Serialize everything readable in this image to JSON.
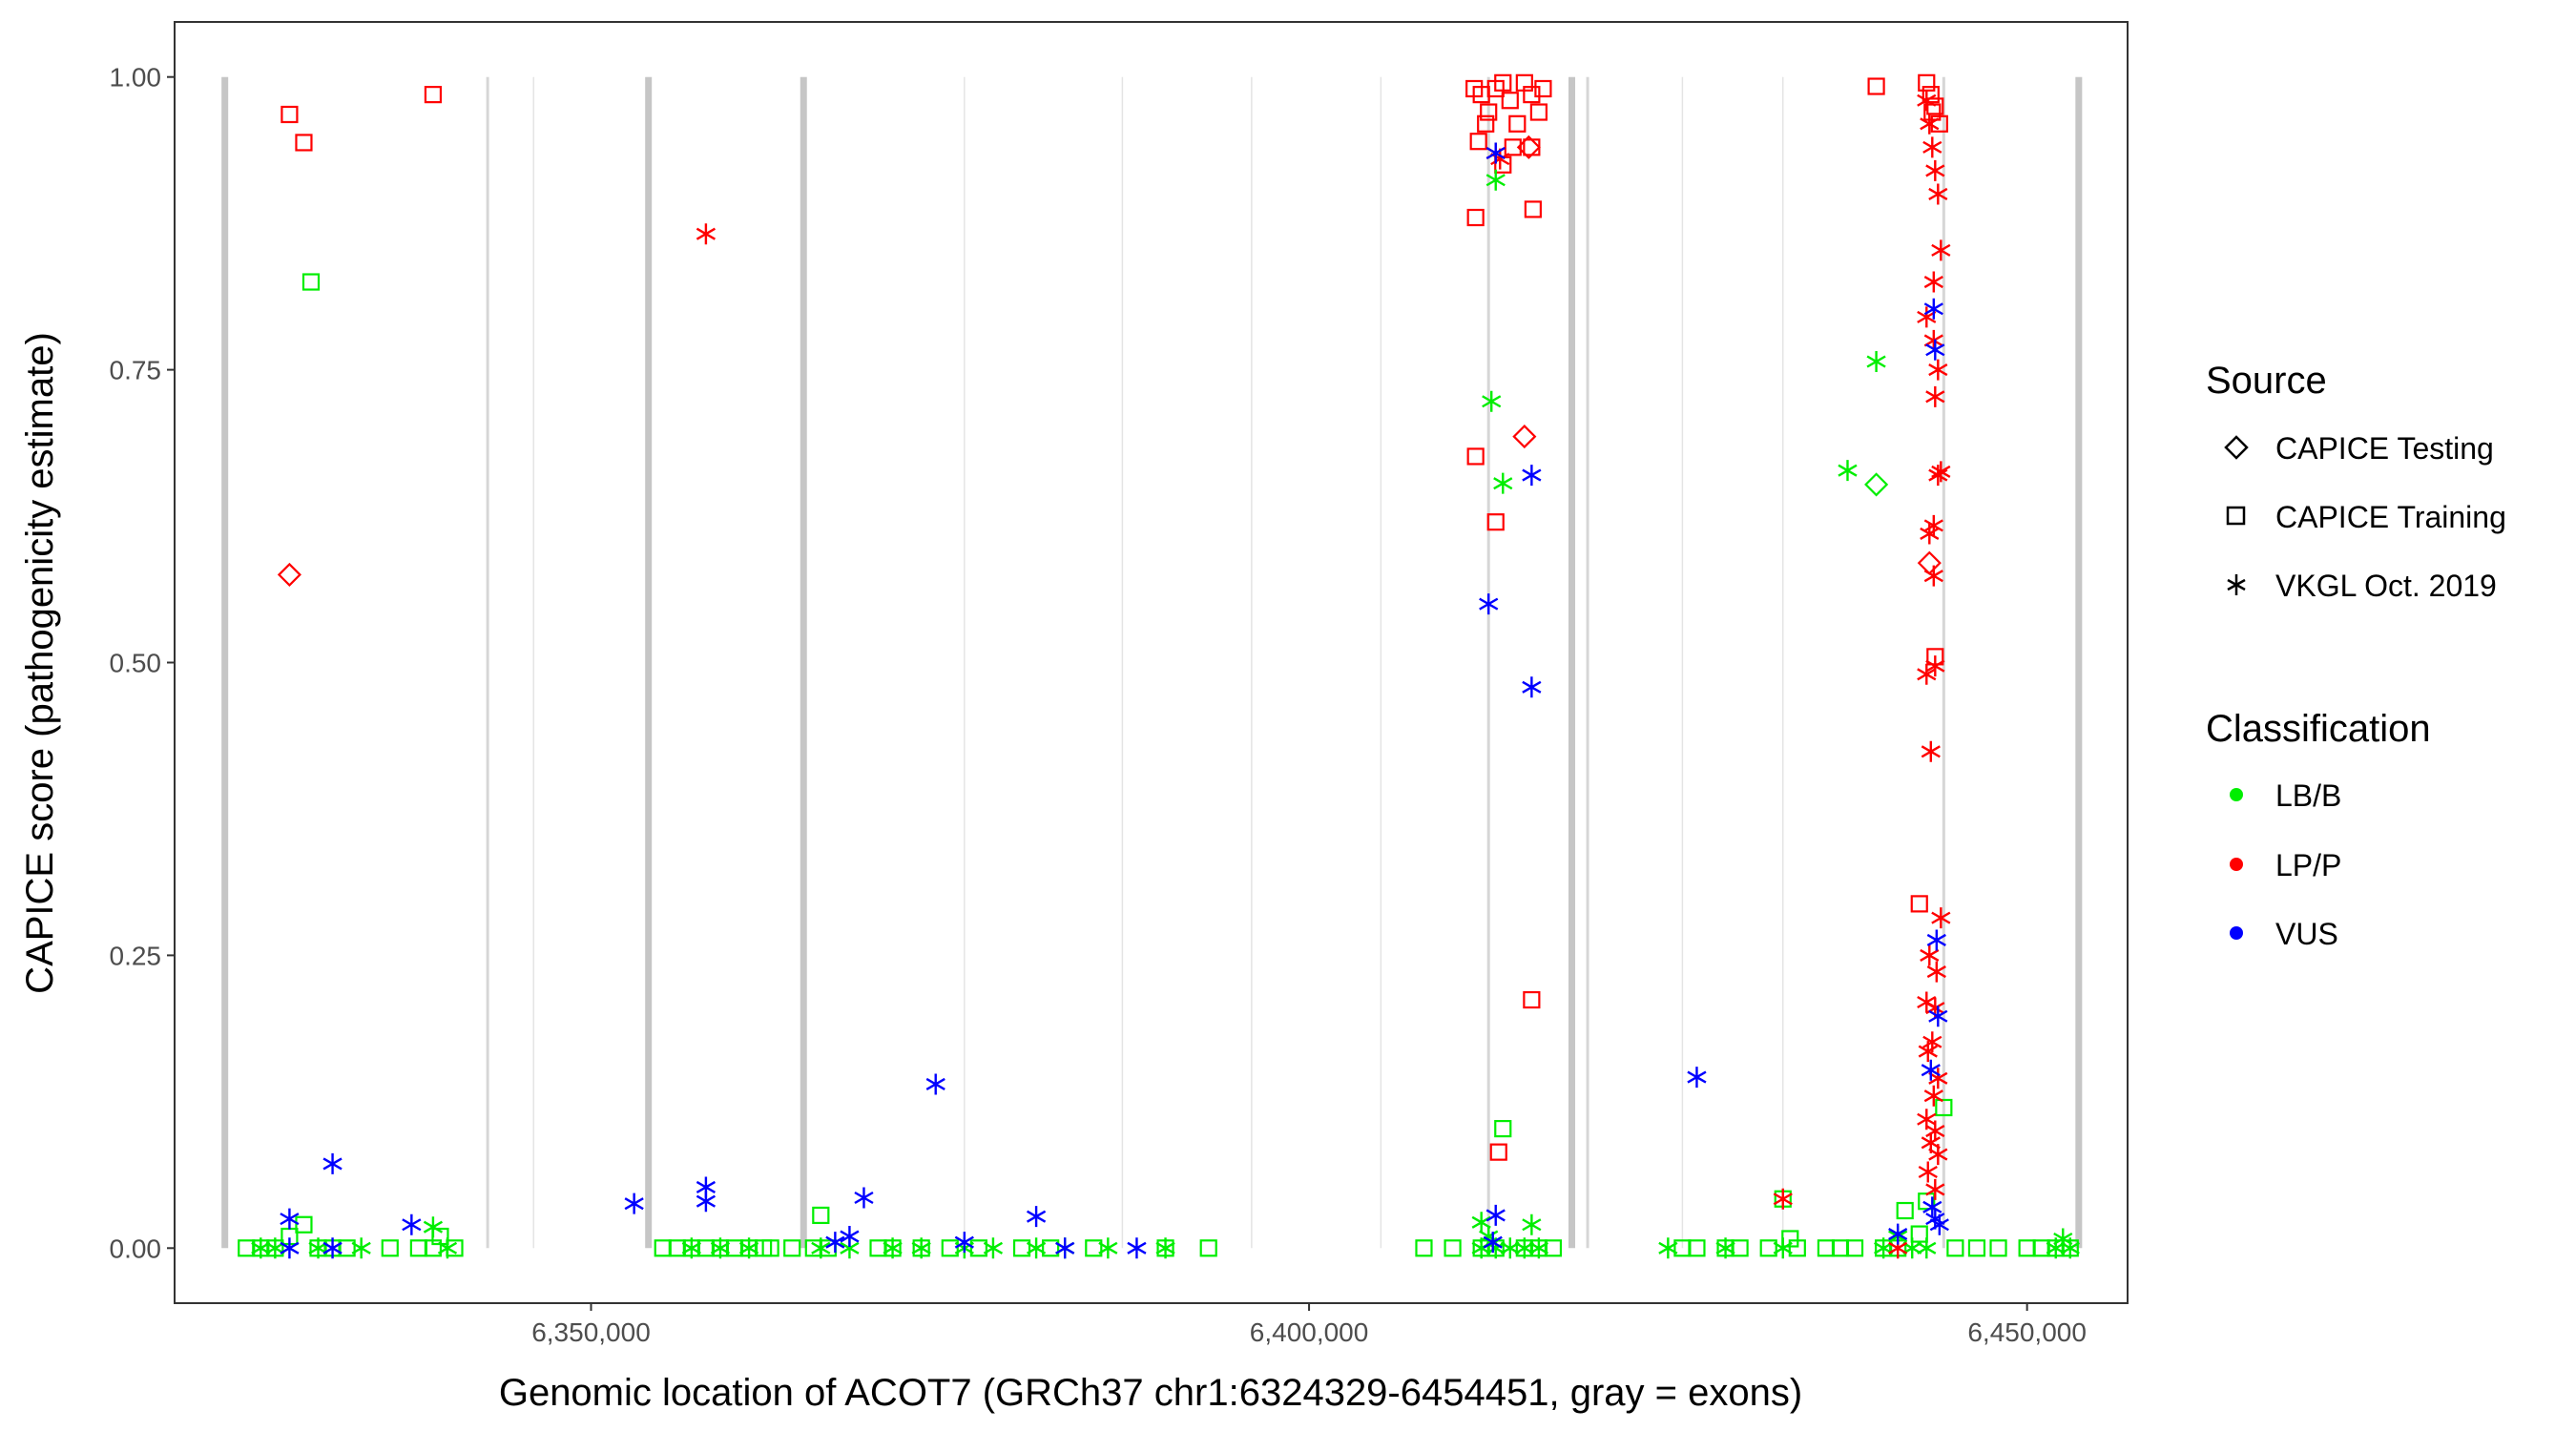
{
  "chart_data": {
    "type": "scatter",
    "xlabel": "Genomic location of ACOT7 (GRCh37 chr1:6324329-6454451, gray = exons)",
    "ylabel": "CAPICE score (pathogenicity estimate)",
    "xlim": [
      6321000,
      6457000
    ],
    "ylim": [
      -0.047,
      1.047
    ],
    "x_ticks": [
      6350000,
      6400000,
      6450000
    ],
    "x_tick_labels": [
      "6,350,000",
      "6,400,000",
      "6,450,000"
    ],
    "y_ticks": [
      0,
      0.25,
      0.5,
      0.75,
      1.0
    ],
    "y_tick_labels": [
      "0.00",
      "0.25",
      "0.50",
      "0.75",
      "1.00"
    ],
    "exons": [
      6324500,
      6342800,
      6354000,
      6364800,
      6412500,
      6418300,
      6419400,
      6444200,
      6453600
    ],
    "thick_exons": [
      6324500,
      6354000,
      6364800,
      6418300,
      6453600
    ],
    "legend": {
      "source_title": "Source",
      "source_items": [
        {
          "shape": "diamond",
          "label": "CAPICE Testing"
        },
        {
          "shape": "square",
          "label": "CAPICE Training"
        },
        {
          "shape": "asterisk",
          "label": "VKGL Oct. 2019"
        }
      ],
      "class_title": "Classification",
      "class_items": [
        {
          "key": "LB/B",
          "label": "LB/B",
          "color": "#00ee00"
        },
        {
          "key": "LP/P",
          "label": "LP/P",
          "color": "#ff0000"
        },
        {
          "key": "VUS",
          "label": "VUS",
          "color": "#0000ff"
        }
      ]
    },
    "series": [
      {
        "name": "CAPICE Training LB/B",
        "shape": "square",
        "class": "LB/B",
        "points": [
          [
            6326000,
            0
          ],
          [
            6327000,
            0
          ],
          [
            6328000,
            0
          ],
          [
            6329000,
            0.01
          ],
          [
            6330000,
            0.02
          ],
          [
            6331000,
            0
          ],
          [
            6332000,
            0
          ],
          [
            6333000,
            0
          ],
          [
            6330500,
            0.825
          ],
          [
            6336000,
            0
          ],
          [
            6338000,
            0
          ],
          [
            6339000,
            0
          ],
          [
            6339500,
            0.01
          ],
          [
            6340500,
            0
          ],
          [
            6355000,
            0
          ],
          [
            6356000,
            0
          ],
          [
            6357000,
            0
          ],
          [
            6358000,
            0
          ],
          [
            6359000,
            0
          ],
          [
            6360000,
            0
          ],
          [
            6361000,
            0
          ],
          [
            6362000,
            0
          ],
          [
            6362500,
            0
          ],
          [
            6364000,
            0
          ],
          [
            6365500,
            0
          ],
          [
            6366500,
            0
          ],
          [
            6366000,
            0.028
          ],
          [
            6370000,
            0
          ],
          [
            6371000,
            0
          ],
          [
            6373000,
            0
          ],
          [
            6375000,
            0
          ],
          [
            6377000,
            0
          ],
          [
            6380000,
            0
          ],
          [
            6382000,
            0
          ],
          [
            6385000,
            0
          ],
          [
            6390000,
            0
          ],
          [
            6393000,
            0
          ],
          [
            6408000,
            0
          ],
          [
            6410000,
            0
          ],
          [
            6412000,
            0
          ],
          [
            6413000,
            0
          ],
          [
            6415000,
            0
          ],
          [
            6416000,
            0
          ],
          [
            6417000,
            0
          ],
          [
            6413500,
            0.102
          ],
          [
            6426000,
            0
          ],
          [
            6427000,
            0
          ],
          [
            6429000,
            0
          ],
          [
            6430000,
            0
          ],
          [
            6432000,
            0
          ],
          [
            6433000,
            0.042
          ],
          [
            6433500,
            0.008
          ],
          [
            6434000,
            0
          ],
          [
            6436000,
            0
          ],
          [
            6437000,
            0
          ],
          [
            6438000,
            0
          ],
          [
            6440000,
            0
          ],
          [
            6441000,
            0
          ],
          [
            6441500,
            0.032
          ],
          [
            6442500,
            0.012
          ],
          [
            6443000,
            0.04
          ],
          [
            6444200,
            0.12
          ],
          [
            6445000,
            0
          ],
          [
            6446500,
            0
          ],
          [
            6448000,
            0
          ],
          [
            6450000,
            0
          ],
          [
            6451000,
            0
          ],
          [
            6452000,
            0
          ],
          [
            6453000,
            0
          ]
        ]
      },
      {
        "name": "CAPICE Training LP/P",
        "shape": "square",
        "class": "LP/P",
        "points": [
          [
            6329000,
            0.968
          ],
          [
            6330000,
            0.944
          ],
          [
            6339000,
            0.985
          ],
          [
            6411500,
            0.99
          ],
          [
            6412000,
            0.985
          ],
          [
            6412500,
            0.97
          ],
          [
            6413000,
            0.99
          ],
          [
            6413500,
            0.995
          ],
          [
            6414000,
            0.98
          ],
          [
            6414500,
            0.96
          ],
          [
            6415000,
            0.995
          ],
          [
            6415500,
            0.985
          ],
          [
            6416000,
            0.97
          ],
          [
            6416300,
            0.99
          ],
          [
            6411800,
            0.945
          ],
          [
            6412300,
            0.96
          ],
          [
            6414200,
            0.94
          ],
          [
            6413500,
            0.925
          ],
          [
            6415500,
            0.94
          ],
          [
            6411600,
            0.88
          ],
          [
            6415600,
            0.887
          ],
          [
            6411600,
            0.676
          ],
          [
            6413000,
            0.62
          ],
          [
            6415500,
            0.212
          ],
          [
            6413200,
            0.082
          ],
          [
            6439500,
            0.992
          ],
          [
            6443000,
            0.995
          ],
          [
            6443300,
            0.985
          ],
          [
            6443600,
            0.975
          ],
          [
            6443900,
            0.96
          ],
          [
            6443400,
            0.97
          ],
          [
            6442500,
            0.294
          ],
          [
            6443600,
            0.505
          ]
        ]
      },
      {
        "name": "CAPICE Testing LP/P",
        "shape": "diamond",
        "class": "LP/P",
        "points": [
          [
            6329000,
            0.575
          ],
          [
            6415000,
            0.693
          ],
          [
            6415300,
            0.94
          ],
          [
            6443200,
            0.585
          ]
        ]
      },
      {
        "name": "CAPICE Testing LB/B",
        "shape": "diamond",
        "class": "LB/B",
        "points": [
          [
            6439500,
            0.652
          ]
        ]
      },
      {
        "name": "VKGL LB/B",
        "shape": "asterisk",
        "class": "LB/B",
        "points": [
          [
            6327000,
            0
          ],
          [
            6328000,
            0
          ],
          [
            6331000,
            0
          ],
          [
            6334000,
            0
          ],
          [
            6339000,
            0.018
          ],
          [
            6340000,
            0
          ],
          [
            6357000,
            0
          ],
          [
            6359000,
            0
          ],
          [
            6361000,
            0
          ],
          [
            6366000,
            0
          ],
          [
            6368000,
            0
          ],
          [
            6371000,
            0
          ],
          [
            6373000,
            0
          ],
          [
            6376000,
            0
          ],
          [
            6378000,
            0
          ],
          [
            6381000,
            0
          ],
          [
            6383000,
            0
          ],
          [
            6386000,
            0
          ],
          [
            6390000,
            0
          ],
          [
            6412000,
            0
          ],
          [
            6413000,
            0
          ],
          [
            6414000,
            0
          ],
          [
            6415000,
            0
          ],
          [
            6416000,
            0
          ],
          [
            6412500,
            0.01
          ],
          [
            6412000,
            0.022
          ],
          [
            6415500,
            0.02
          ],
          [
            6413000,
            0.912
          ],
          [
            6412700,
            0.723
          ],
          [
            6413500,
            0.653
          ],
          [
            6425000,
            0
          ],
          [
            6429000,
            0
          ],
          [
            6433000,
            0
          ],
          [
            6437500,
            0.664
          ],
          [
            6439500,
            0.757
          ],
          [
            6440000,
            0
          ],
          [
            6441000,
            0.01
          ],
          [
            6442000,
            0
          ],
          [
            6443000,
            0
          ],
          [
            6452000,
            0
          ],
          [
            6452500,
            0.008
          ],
          [
            6453000,
            0
          ]
        ]
      },
      {
        "name": "VKGL LP/P",
        "shape": "asterisk",
        "class": "LP/P",
        "points": [
          [
            6358000,
            0.866
          ],
          [
            6413000,
            0.935
          ],
          [
            6413300,
            0.93
          ],
          [
            6433000,
            0.042
          ],
          [
            6441000,
            0
          ],
          [
            6443000,
            0.98
          ],
          [
            6443200,
            0.96
          ],
          [
            6443400,
            0.94
          ],
          [
            6443600,
            0.92
          ],
          [
            6443800,
            0.9
          ],
          [
            6444000,
            0.852
          ],
          [
            6443500,
            0.825
          ],
          [
            6443000,
            0.795
          ],
          [
            6443500,
            0.775
          ],
          [
            6443800,
            0.75
          ],
          [
            6443600,
            0.727
          ],
          [
            6444000,
            0.663
          ],
          [
            6443800,
            0.66
          ],
          [
            6443500,
            0.617
          ],
          [
            6443200,
            0.61
          ],
          [
            6443500,
            0.574
          ],
          [
            6443000,
            0.49
          ],
          [
            6443600,
            0.497
          ],
          [
            6443300,
            0.424
          ],
          [
            6444000,
            0.282
          ],
          [
            6443200,
            0.25
          ],
          [
            6443700,
            0.236
          ],
          [
            6443000,
            0.21
          ],
          [
            6443600,
            0.205
          ],
          [
            6443400,
            0.176
          ],
          [
            6443100,
            0.168
          ],
          [
            6443800,
            0.145
          ],
          [
            6443500,
            0.13
          ],
          [
            6443000,
            0.11
          ],
          [
            6443600,
            0.1
          ],
          [
            6443300,
            0.09
          ],
          [
            6443800,
            0.08
          ],
          [
            6443100,
            0.065
          ],
          [
            6443600,
            0.05
          ]
        ]
      },
      {
        "name": "VKGL VUS",
        "shape": "asterisk",
        "class": "VUS",
        "points": [
          [
            6329000,
            0.025
          ],
          [
            6329000,
            0
          ],
          [
            6332000,
            0.072
          ],
          [
            6332000,
            0
          ],
          [
            6337500,
            0.02
          ],
          [
            6353000,
            0.038
          ],
          [
            6358000,
            0.052
          ],
          [
            6358000,
            0.04
          ],
          [
            6367000,
            0.005
          ],
          [
            6368000,
            0.01
          ],
          [
            6369000,
            0.043
          ],
          [
            6374000,
            0.14
          ],
          [
            6376000,
            0.005
          ],
          [
            6381000,
            0.027
          ],
          [
            6383000,
            0
          ],
          [
            6388000,
            0
          ],
          [
            6413000,
            0.935
          ],
          [
            6413000,
            0.028
          ],
          [
            6412800,
            0.005
          ],
          [
            6412500,
            0.55
          ],
          [
            6415500,
            0.66
          ],
          [
            6415500,
            0.479
          ],
          [
            6427000,
            0.146
          ],
          [
            6441000,
            0.012
          ],
          [
            6443500,
            0.802
          ],
          [
            6443600,
            0.767
          ],
          [
            6443700,
            0.263
          ],
          [
            6443800,
            0.198
          ],
          [
            6443300,
            0.152
          ],
          [
            6443400,
            0.035
          ],
          [
            6443600,
            0.025
          ],
          [
            6443900,
            0.02
          ]
        ]
      }
    ]
  }
}
